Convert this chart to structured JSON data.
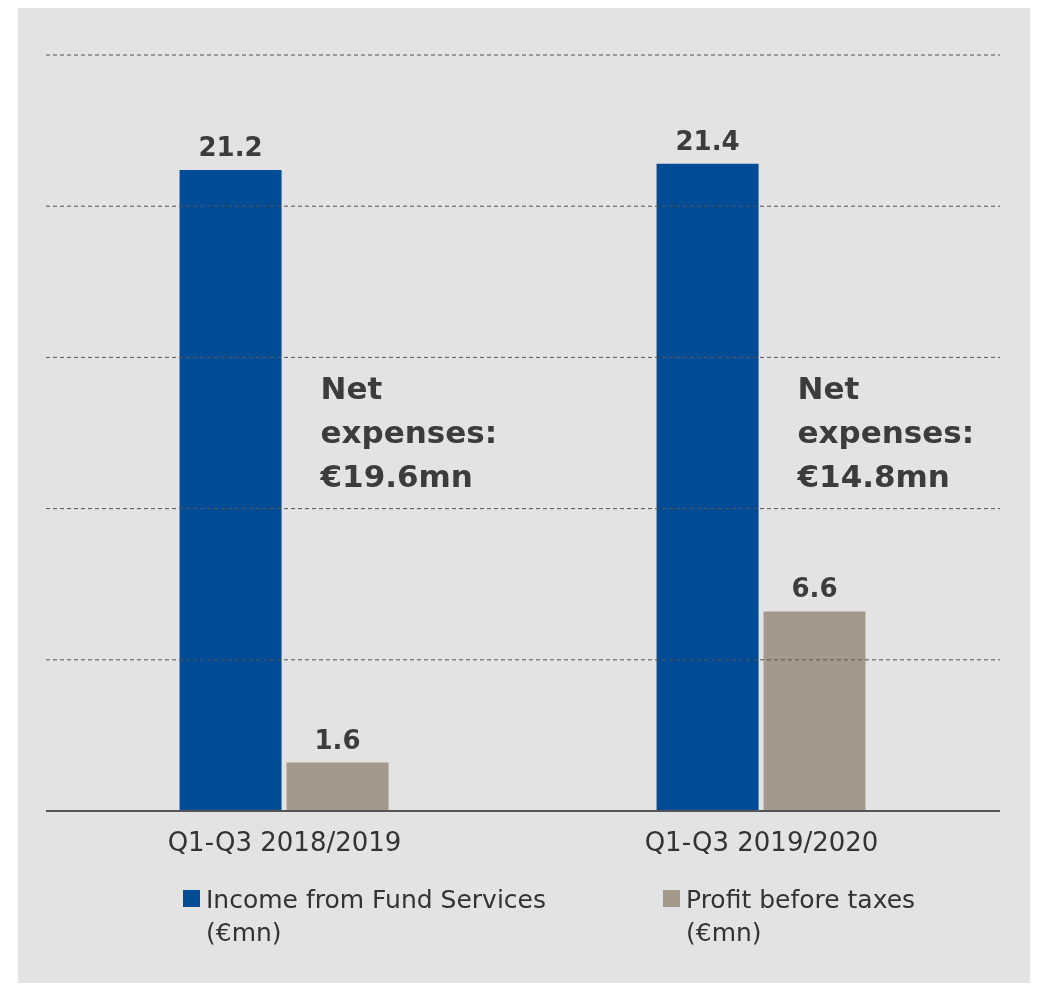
{
  "chart_data": {
    "type": "bar",
    "categories": [
      "Q1-Q3 2018/2019",
      "Q1-Q3 2019/2020"
    ],
    "series": [
      {
        "name": "Income from Fund Services (€mn)",
        "color": "#004b96",
        "values": [
          21.2,
          21.4
        ]
      },
      {
        "name": "Profit before taxes (€mn)",
        "color": "#a39a8d",
        "values": [
          1.6,
          6.6
        ]
      }
    ],
    "data_labels": true,
    "ylim": [
      0,
      25
    ],
    "yticks": [
      {
        "value": 0,
        "label": null
      },
      {
        "value": 5,
        "label": null
      },
      {
        "value": 10,
        "label": null
      },
      {
        "value": 15,
        "label": null
      },
      {
        "value": 20,
        "label": null
      },
      {
        "value": 25,
        "label": null
      }
    ],
    "tick_labels": "x",
    "grid": "y",
    "legend": "bottom",
    "annotations": [
      {
        "text": "Net expenses: €19.6mn",
        "x": "Q1-Q3 2018/2019",
        "y": 12.5
      },
      {
        "text": "Net expenses: €14.8mn",
        "x": "Q1-Q3 2019/2020",
        "y": 12.5
      }
    ]
  }
}
